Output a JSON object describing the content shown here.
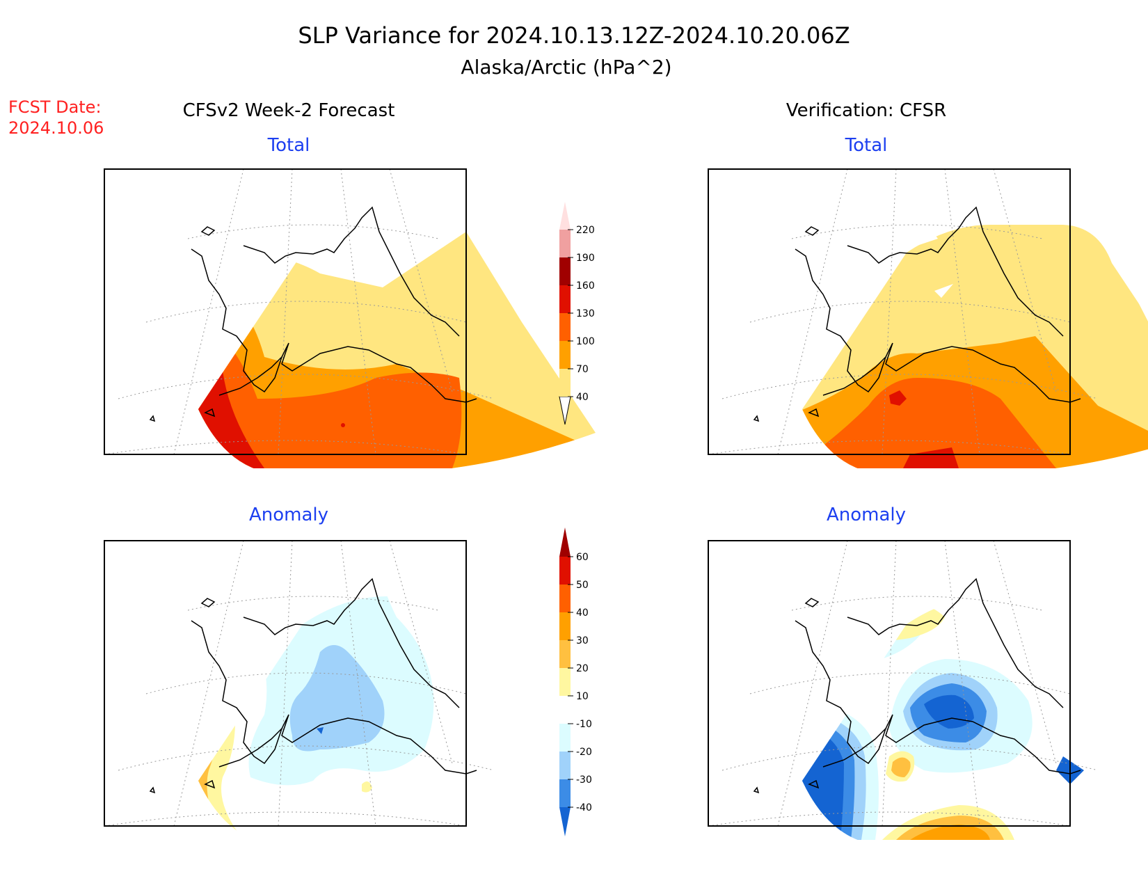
{
  "title": {
    "line1": "SLP Variance for 2024.10.13.12Z-2024.10.20.06Z",
    "line2": "Alaska/Arctic (hPa^2)"
  },
  "fcst_date": {
    "label": "FCST Date:",
    "value": "2024.10.06"
  },
  "columns": {
    "left_heading": "CFSv2 Week-2 Forecast",
    "right_heading": "Verification: CFSR"
  },
  "panels": {
    "forecast_total": {
      "title": "Total"
    },
    "verification_total": {
      "title": "Total"
    },
    "forecast_anomaly": {
      "title": "Anomaly"
    },
    "verification_anomaly": {
      "title": "Anomaly"
    }
  },
  "colors": {
    "heading_red": "#ff2020",
    "panel_title_blue": "#1c3ff0",
    "land_outline": "#000000"
  },
  "total_colorbar": {
    "levels": [
      "40",
      "70",
      "100",
      "130",
      "160",
      "190",
      "220"
    ],
    "colors": [
      "#ffe680",
      "#ffa000",
      "#ff6000",
      "#e01000",
      "#a00000",
      "#f0a0a0",
      "#ffe0e0"
    ]
  },
  "anomaly_colorbar": {
    "levels": [
      "60",
      "50",
      "40",
      "30",
      "20",
      "10",
      "-10",
      "-20",
      "-30",
      "-40"
    ],
    "colors": [
      "#a00000",
      "#e01000",
      "#ff6000",
      "#ffa000",
      "#ffc040",
      "#fff7a0",
      "#ffffff",
      "#dcfcff",
      "#a0d2fa",
      "#3c8ce6",
      "#1464d2"
    ]
  }
}
